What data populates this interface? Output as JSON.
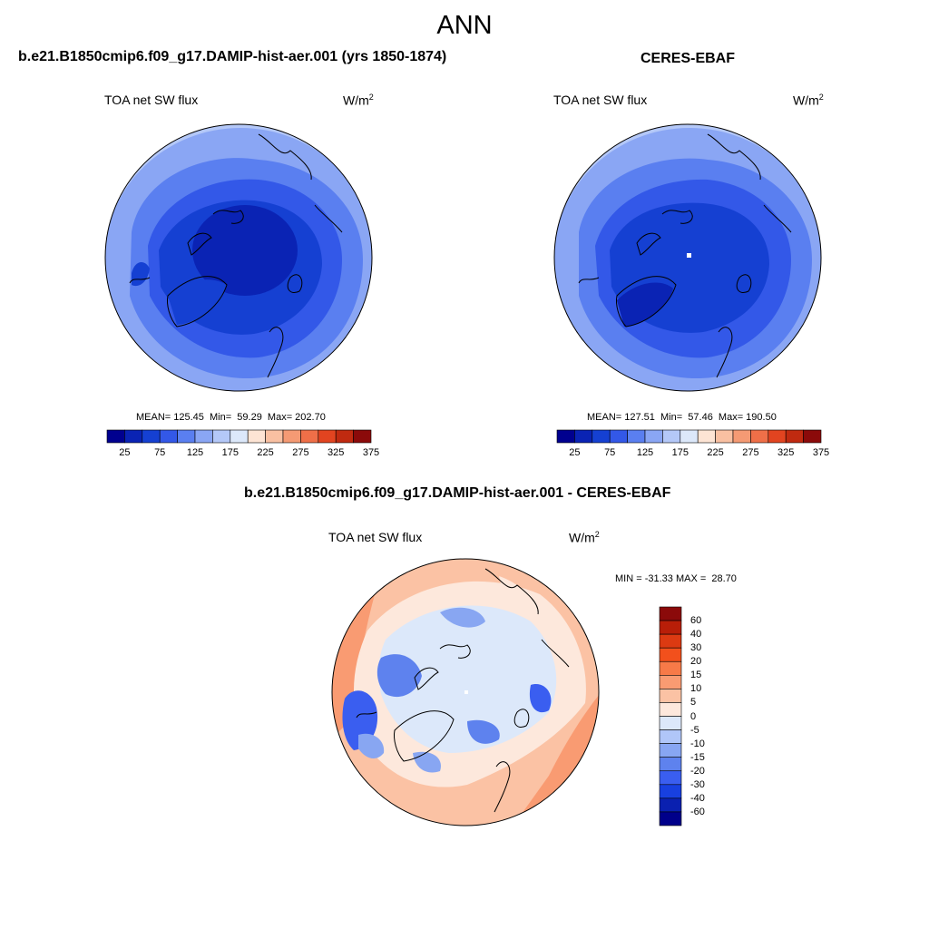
{
  "season": "ANN",
  "panels": [
    {
      "title": "b.e21.B1850cmip6.f09_g17.DAMIP-hist-aer.001 (yrs 1850-1874)",
      "variable": "TOA net SW flux",
      "units": "W/m",
      "units_sup": "2",
      "stats": "MEAN= 125.45  Min=  59.29  Max= 202.70",
      "stats_values": {
        "mean": 125.45,
        "min": 59.29,
        "max": 202.7
      }
    },
    {
      "title": "CERES-EBAF",
      "variable": "TOA net SW flux",
      "units": "W/m",
      "units_sup": "2",
      "stats": "MEAN= 127.51  Min=  57.46  Max= 190.50",
      "stats_values": {
        "mean": 127.51,
        "min": 57.46,
        "max": 190.5
      }
    },
    {
      "title": "b.e21.B1850cmip6.f09_g17.DAMIP-hist-aer.001 - CERES-EBAF",
      "variable": "TOA net SW flux",
      "units": "W/m",
      "units_sup": "2",
      "stats": "MIN = -31.33 MAX =  28.70",
      "stats_values": {
        "min": -31.33,
        "max": 28.7
      }
    }
  ],
  "colorbar_main": {
    "labels": [
      "25",
      "75",
      "125",
      "175",
      "225",
      "275",
      "325",
      "375"
    ],
    "colors": [
      "#00008f",
      "#0a23b4",
      "#1540d2",
      "#3358e8",
      "#5a7ff0",
      "#8aa6f4",
      "#b4c8f8",
      "#dce8fa",
      "#fde4d4",
      "#f9c0a2",
      "#f59a74",
      "#ef6f48",
      "#e24420",
      "#c02a10",
      "#8b0a0a"
    ]
  },
  "colorbar_diff": {
    "labels": [
      "60",
      "40",
      "30",
      "20",
      "15",
      "10",
      "5",
      "0",
      "-5",
      "-10",
      "-15",
      "-20",
      "-30",
      "-40",
      "-60"
    ],
    "colors": [
      "#8b0a0a",
      "#b81e08",
      "#dc3a12",
      "#f2501c",
      "#f77a48",
      "#f99b72",
      "#fbc2a4",
      "#fde8dc",
      "#dce8fa",
      "#b0c6f8",
      "#88a6f2",
      "#5e82ee",
      "#3a5ef0",
      "#1840e0",
      "#0a20b0",
      "#00008a"
    ]
  }
}
